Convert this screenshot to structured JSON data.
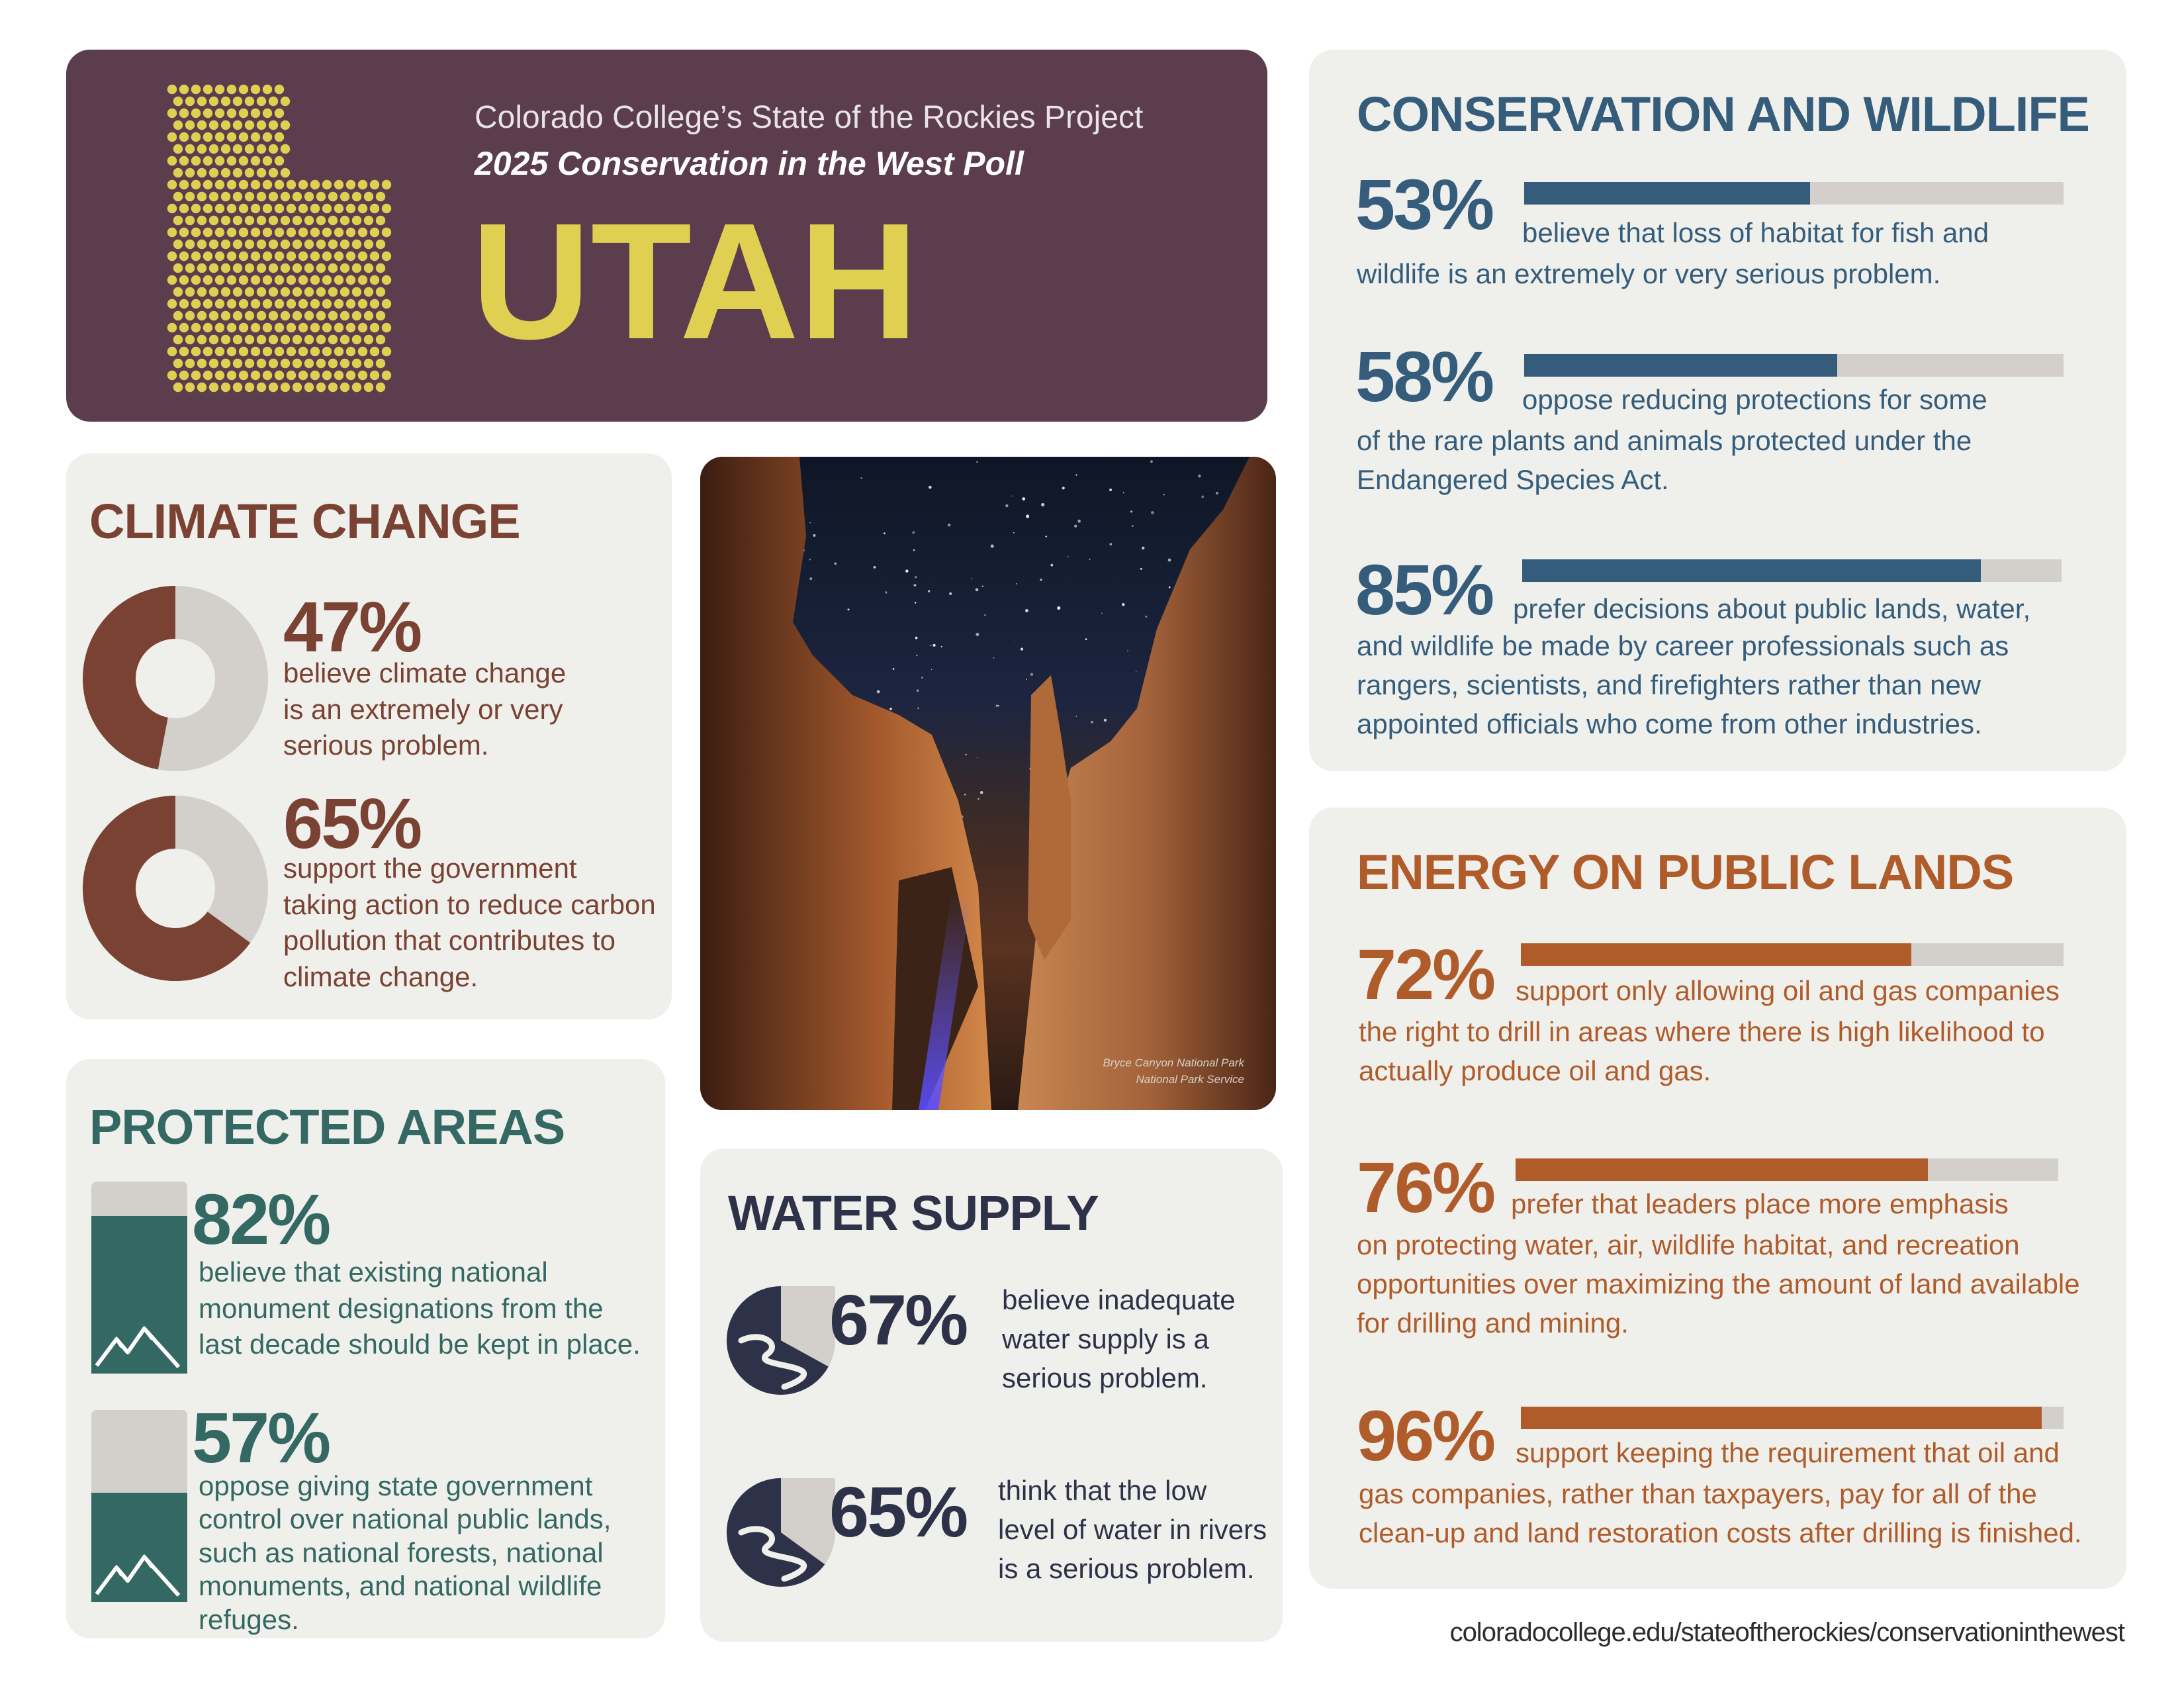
{
  "header": {
    "subtitle": "Colorado College’s State of the Rockies Project",
    "poll_name": "2025 Conservation in the West Poll",
    "state": "UTAH",
    "colors": {
      "background": "#5c3d4e",
      "accent": "#e0d052"
    }
  },
  "climate": {
    "title": "CLIMATE CHANGE",
    "color": "#7a4232",
    "items": [
      {
        "value": 0.47,
        "pct": "47%",
        "text": "believe climate change\nis an extremely or very\nserious problem."
      },
      {
        "value": 0.65,
        "pct": "65%",
        "text": "support the government\ntaking action to reduce carbon\npollution that contributes to\nclimate change."
      }
    ]
  },
  "protected": {
    "title": "PROTECTED AREAS",
    "color": "#346862",
    "items": [
      {
        "value": 0.82,
        "pct": "82%",
        "text": "believe that existing national\nmonument designations from the\nlast decade should be kept in place."
      },
      {
        "value": 0.57,
        "pct": "57%",
        "text": "oppose giving state government\ncontrol over national public lands,\nsuch as national forests, national\nmonuments, and national wildlife\nrefuges."
      }
    ]
  },
  "photo": {
    "caption_line1": "Bryce Canyon National Park",
    "caption_line2": "National Park Service"
  },
  "water": {
    "title": "WATER SUPPLY",
    "color": "#2e3249",
    "items": [
      {
        "value": 0.67,
        "pct": "67%",
        "text": "believe inadequate\nwater supply is a\nserious problem."
      },
      {
        "value": 0.65,
        "pct": "65%",
        "text": "think that the low\nlevel of water in rivers\nis a serious problem."
      }
    ]
  },
  "wildlife": {
    "title": "CONSERVATION AND WILDLIFE",
    "color": "#355d7b",
    "items": [
      {
        "value": 0.53,
        "pct": "53%",
        "first": "believe that loss of habitat for fish and",
        "rest": "wildlife is an extremely or very serious problem."
      },
      {
        "value": 0.58,
        "pct": "58%",
        "first": "oppose reducing protections for some",
        "rest": "of the rare plants and animals protected under the\nEndangered Species Act."
      },
      {
        "value": 0.85,
        "pct": "85%",
        "first": "prefer decisions about public lands, water,",
        "rest": "and wildlife be made by career professionals such as\nrangers, scientists, and firefighters rather than new\nappointed officials who come from other industries."
      }
    ]
  },
  "energy": {
    "title": "ENERGY ON PUBLIC LANDS",
    "color": "#b05c2a",
    "items": [
      {
        "value": 0.72,
        "pct": "72%",
        "first": "support only allowing oil and gas companies",
        "rest": "the right to drill in areas where there is high likelihood to\nactually produce oil and gas."
      },
      {
        "value": 0.76,
        "pct": "76%",
        "first": "prefer that leaders place more emphasis",
        "rest": "on protecting water, air, wildlife habitat, and recreation\nopportunities over maximizing the amount of land available\nfor drilling and mining."
      },
      {
        "value": 0.96,
        "pct": "96%",
        "first": "support keeping the requirement that oil and",
        "rest": "gas companies, rather than taxpayers, pay for all of the\nclean-up and land restoration costs after drilling is finished."
      }
    ]
  },
  "footer": {
    "url": "coloradocollege.edu/stateoftherockies/conservationinthewest"
  }
}
